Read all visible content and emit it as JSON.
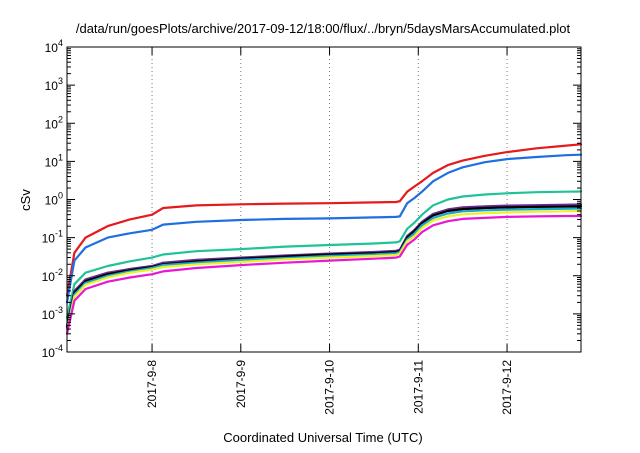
{
  "chart_data": {
    "type": "line",
    "title": "/data/run/goesPlots/archive/2017-09-12/18:00/flux/../bryn/5daysMarsAccumulated.plot",
    "xlabel": "Coordinated Universal Time (UTC)",
    "ylabel": "cSv",
    "y_scale": "log",
    "ylim": [
      0.0001,
      10000
    ],
    "xlim": [
      "2017-09-07 01:00",
      "2017-09-12 20:00"
    ],
    "x_ticks": [
      "2017-9-8",
      "2017-9-9",
      "2017-9-10",
      "2017-9-11",
      "2017-9-12"
    ],
    "y_ticks": [
      {
        "base": "10",
        "exp": "-4"
      },
      {
        "base": "10",
        "exp": "-3"
      },
      {
        "base": "10",
        "exp": "-2"
      },
      {
        "base": "10",
        "exp": "-1"
      },
      {
        "base": "10",
        "exp": "0"
      },
      {
        "base": "10",
        "exp": "1"
      },
      {
        "base": "10",
        "exp": "2"
      },
      {
        "base": "10",
        "exp": "3"
      },
      {
        "base": "10",
        "exp": "4"
      }
    ],
    "grid": true,
    "legend": "none",
    "x": [
      "2017-09-07 01:00",
      "2017-09-07 03:00",
      "2017-09-07 06:00",
      "2017-09-07 12:00",
      "2017-09-07 18:00",
      "2017-09-08 00:00",
      "2017-09-08 03:00",
      "2017-09-08 12:00",
      "2017-09-09 00:00",
      "2017-09-09 12:00",
      "2017-09-10 00:00",
      "2017-09-10 12:00",
      "2017-09-10 18:00",
      "2017-09-10 19:00",
      "2017-09-10 21:00",
      "2017-09-10 23:00",
      "2017-09-11 01:00",
      "2017-09-11 04:00",
      "2017-09-11 08:00",
      "2017-09-11 12:00",
      "2017-09-11 18:00",
      "2017-09-12 00:00",
      "2017-09-12 08:00",
      "2017-09-12 16:00",
      "2017-09-12 20:00"
    ],
    "series": [
      {
        "color": "#e41a1c",
        "values": [
          0.003,
          0.04,
          0.1,
          0.2,
          0.3,
          0.4,
          0.6,
          0.7,
          0.75,
          0.78,
          0.8,
          0.84,
          0.86,
          0.9,
          1.6,
          2.2,
          3.0,
          5.0,
          8.0,
          10.5,
          14.0,
          17.5,
          22.0,
          26.0,
          28.0
        ]
      },
      {
        "color": "#1f6fe0",
        "values": [
          0.002,
          0.025,
          0.055,
          0.1,
          0.13,
          0.16,
          0.22,
          0.26,
          0.29,
          0.31,
          0.32,
          0.34,
          0.35,
          0.36,
          0.8,
          1.1,
          1.6,
          3.0,
          5.0,
          7.0,
          9.5,
          11.5,
          13.0,
          14.5,
          15.0
        ]
      },
      {
        "color": "#1fc397",
        "values": [
          0.0008,
          0.006,
          0.012,
          0.018,
          0.024,
          0.03,
          0.036,
          0.044,
          0.05,
          0.058,
          0.064,
          0.07,
          0.075,
          0.08,
          0.17,
          0.25,
          0.4,
          0.7,
          1.0,
          1.2,
          1.35,
          1.45,
          1.55,
          1.6,
          1.62
        ]
      },
      {
        "color": "#6a2c91",
        "values": [
          0.0005,
          0.004,
          0.008,
          0.012,
          0.015,
          0.018,
          0.022,
          0.026,
          0.03,
          0.034,
          0.038,
          0.042,
          0.045,
          0.048,
          0.11,
          0.16,
          0.26,
          0.42,
          0.55,
          0.62,
          0.66,
          0.69,
          0.71,
          0.73,
          0.74
        ]
      },
      {
        "color": "#000000",
        "values": [
          0.00045,
          0.0036,
          0.0072,
          0.011,
          0.014,
          0.017,
          0.02,
          0.024,
          0.028,
          0.032,
          0.036,
          0.039,
          0.042,
          0.045,
          0.1,
          0.15,
          0.24,
          0.38,
          0.5,
          0.56,
          0.6,
          0.62,
          0.64,
          0.65,
          0.66
        ]
      },
      {
        "color": "#19a9ce",
        "values": [
          0.0004,
          0.0032,
          0.0065,
          0.01,
          0.013,
          0.016,
          0.019,
          0.022,
          0.026,
          0.029,
          0.033,
          0.036,
          0.039,
          0.042,
          0.09,
          0.13,
          0.21,
          0.33,
          0.43,
          0.49,
          0.52,
          0.54,
          0.56,
          0.57,
          0.58
        ]
      },
      {
        "color": "#f1ef2a",
        "values": [
          0.00035,
          0.0028,
          0.0058,
          0.009,
          0.012,
          0.0145,
          0.017,
          0.02,
          0.023,
          0.027,
          0.03,
          0.033,
          0.035,
          0.038,
          0.08,
          0.11,
          0.18,
          0.28,
          0.36,
          0.41,
          0.44,
          0.46,
          0.48,
          0.49,
          0.5
        ]
      },
      {
        "color": "#e817d4",
        "values": [
          0.0003,
          0.0022,
          0.0045,
          0.007,
          0.009,
          0.011,
          0.013,
          0.016,
          0.019,
          0.022,
          0.025,
          0.028,
          0.03,
          0.032,
          0.065,
          0.09,
          0.14,
          0.21,
          0.27,
          0.31,
          0.33,
          0.35,
          0.36,
          0.37,
          0.37
        ]
      }
    ]
  }
}
